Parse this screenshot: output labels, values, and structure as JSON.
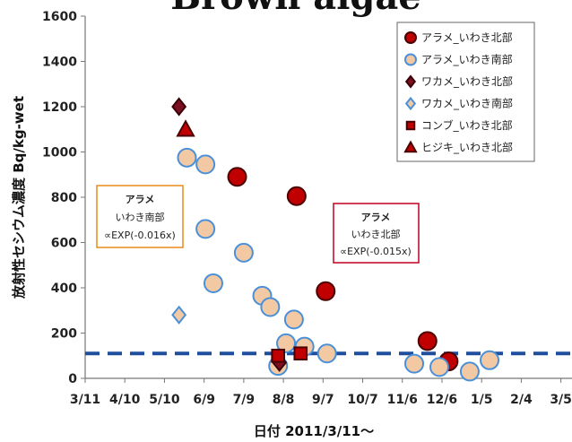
{
  "chart_data": {
    "type": "scatter",
    "title": "Brown algae",
    "xlabel": "日付 2011/3/11〜",
    "ylabel": "放射性セシウム濃度 Bq/kg-wet",
    "xlim": [
      0,
      365
    ],
    "ylim": [
      0,
      1600
    ],
    "x_ticks": [
      {
        "value": 0,
        "label": "3/11"
      },
      {
        "value": 30,
        "label": "4/10"
      },
      {
        "value": 60,
        "label": "5/10"
      },
      {
        "value": 90,
        "label": "6/9"
      },
      {
        "value": 120,
        "label": "7/9"
      },
      {
        "value": 150,
        "label": "8/8"
      },
      {
        "value": 180,
        "label": "9/7"
      },
      {
        "value": 210,
        "label": "10/7"
      },
      {
        "value": 240,
        "label": "11/6"
      },
      {
        "value": 270,
        "label": "12/6"
      },
      {
        "value": 300,
        "label": "1/5"
      },
      {
        "value": 330,
        "label": "2/4"
      },
      {
        "value": 360,
        "label": "3/5"
      }
    ],
    "y_ticks": [
      0,
      200,
      400,
      600,
      800,
      1000,
      1200,
      1400,
      1600
    ],
    "reference_line": {
      "y": 110,
      "style": "dashed",
      "color": "#1f4e9c"
    },
    "series": [
      {
        "name": "アラメ_いわき北部",
        "marker": "circle",
        "color": "#c00000",
        "stroke": "#4a0000",
        "points": [
          [
            115,
            890
          ],
          [
            160,
            805
          ],
          [
            182,
            385
          ],
          [
            259,
            165
          ],
          [
            275,
            75
          ]
        ]
      },
      {
        "name": "アラメ_いわき南部",
        "marker": "circle",
        "color": "#f3c9a4",
        "stroke": "#4a90d9",
        "points": [
          [
            77,
            975
          ],
          [
            91,
            945
          ],
          [
            91,
            660
          ],
          [
            97,
            420
          ],
          [
            120,
            555
          ],
          [
            134,
            365
          ],
          [
            140,
            315
          ],
          [
            146,
            55
          ],
          [
            152,
            155
          ],
          [
            158,
            260
          ],
          [
            166,
            140
          ],
          [
            183,
            110
          ],
          [
            249,
            65
          ],
          [
            268,
            50
          ],
          [
            291,
            30
          ],
          [
            306,
            80
          ]
        ]
      },
      {
        "name": "ワカメ_いわき北部",
        "marker": "diamond",
        "color": "#7a1020",
        "stroke": "#3a0008",
        "points": [
          [
            71,
            1200
          ],
          [
            147,
            70
          ]
        ]
      },
      {
        "name": "ワカメ_いわき南部",
        "marker": "diamond",
        "color": "#f3c9a4",
        "stroke": "#4a90d9",
        "points": [
          [
            71,
            280
          ]
        ]
      },
      {
        "name": "コンブ_いわき北部",
        "marker": "square",
        "color": "#c00000",
        "stroke": "#4a0000",
        "points": [
          [
            146,
            100
          ],
          [
            163,
            110
          ]
        ]
      },
      {
        "name": "ヒジキ_いわき北部",
        "marker": "triangle",
        "color": "#c00000",
        "stroke": "#4a0000",
        "points": [
          [
            76,
            1100
          ]
        ]
      }
    ],
    "fit_curves": [
      {
        "series": "アラメ_いわき南部",
        "color": "#e88a1a",
        "k": 0.016,
        "A": 3000000,
        "x_range": [
          77,
          365
        ]
      },
      {
        "series": "アラメ_いわき北部",
        "color": "#c0001e",
        "k": 0.015,
        "A": 1200000,
        "x_range": [
          118,
          300
        ]
      }
    ],
    "annotations": [
      {
        "title": "アラメ",
        "line2": "いわき南部",
        "formula": "∝EXP(-0.016x)",
        "color": "#e88a1a"
      },
      {
        "title": "アラメ",
        "line2": "いわき北部",
        "formula": "∝EXP(-0.015x)",
        "color": "#c0001e"
      }
    ],
    "legend": {
      "position": "top-right"
    },
    "grid": false
  }
}
